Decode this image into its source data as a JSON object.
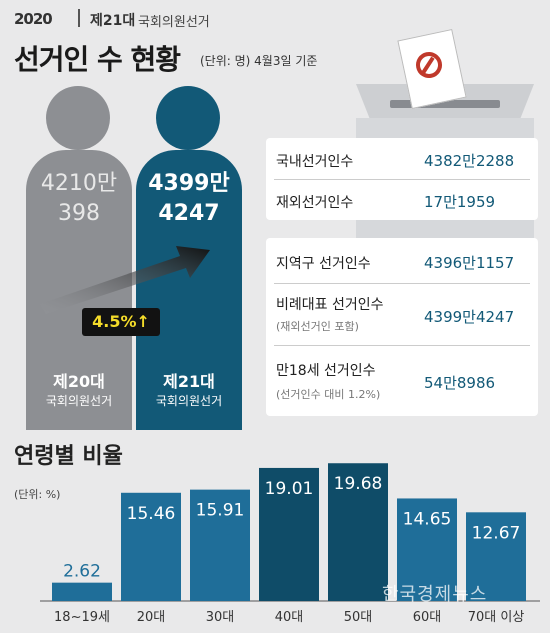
{
  "header": {
    "logo": "2020",
    "subtitle_a": "제21대",
    "subtitle_b": "국회의원선거",
    "title": "선거인 수 현황",
    "note": "(단위: 명) 4월3일 기준"
  },
  "figures": {
    "prev": {
      "num_line1": "4210만",
      "num_line2": "398",
      "label": "제20대",
      "label_sub": "국회의원선거"
    },
    "curr": {
      "num_line1": "4399만",
      "num_line2": "4247",
      "label": "제21대",
      "label_sub": "국회의원선거"
    },
    "growth": "4.5%↑"
  },
  "info_box_1": [
    {
      "label": "국내선거인수",
      "value": "4382만2288"
    },
    {
      "label": "재외선거인수",
      "value": "17만1959"
    }
  ],
  "info_box_2": [
    {
      "label": "지역구 선거인수",
      "value": "4396만1157",
      "note": ""
    },
    {
      "label": "비례대표 선거인수",
      "value": "4399만4247",
      "note": "(재외선거인 포함)"
    },
    {
      "label": "만18세 선거인수",
      "value": "54만8986",
      "note": "(선거인수 대비 1.2%)"
    }
  ],
  "age_section": {
    "title": "연령별 비율",
    "unit": "(단위: %)"
  },
  "chart_data": {
    "type": "bar",
    "categories": [
      "18~19세",
      "20대",
      "30대",
      "40대",
      "50대",
      "60대",
      "70대 이상"
    ],
    "values": [
      2.62,
      15.46,
      15.91,
      19.01,
      19.68,
      14.65,
      12.67
    ],
    "value_labels": [
      "2.62",
      "15.46",
      "15.91",
      "19.01",
      "19.68",
      "14.65",
      "12.67"
    ],
    "highlight": [
      40,
      50
    ],
    "colors": {
      "normal": "#1f6e99",
      "highlight": "#0f4c68",
      "label": "#ffffff",
      "label_small": "#1f6e99"
    }
  },
  "watermark": "한국경제뉴스",
  "colors": {
    "navy": "#125977",
    "gray": "#8d8f93",
    "accent": "#f4dc2a"
  }
}
